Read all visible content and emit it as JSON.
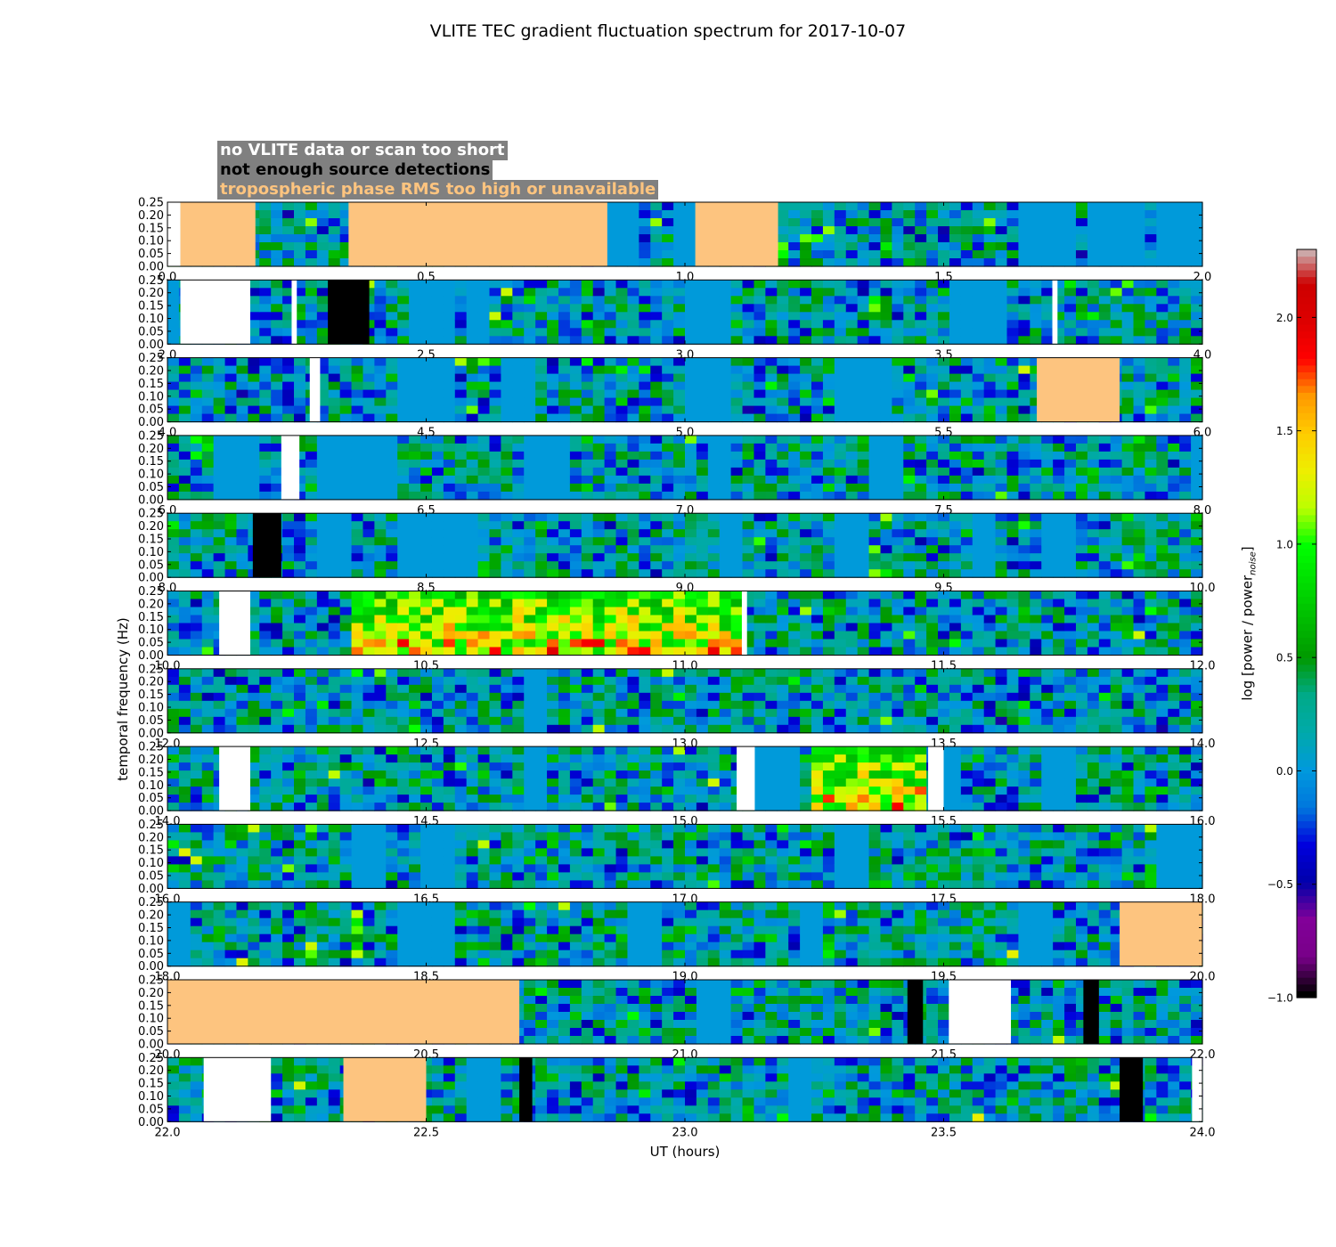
{
  "chart_data": {
    "type": "heatmap",
    "title": "VLITE TEC gradient fluctuation spectrum for 2017-10-07",
    "xlabel": "UT (hours)",
    "ylabel": "temporal frequency (Hz)",
    "ylim": [
      0,
      0.25
    ],
    "yticks": [
      "0.00",
      "0.05",
      "0.10",
      "0.15",
      "0.20",
      "0.25"
    ],
    "legend": {
      "placement": "top-left",
      "entries": [
        {
          "label": "no VLITE data or scan too short",
          "color": "#ffffff"
        },
        {
          "label": "not enough source detections",
          "color": "#000000"
        },
        {
          "label": "tropospheric phase RMS too high or unavailable",
          "color": "#fdc47f"
        }
      ]
    },
    "colorbar": {
      "label": "log [power / power",
      "label_sub": "noise",
      "label_end": "]",
      "range": [
        -1.0,
        2.3
      ],
      "ticks": [
        "2.0",
        "1.5",
        "1.0",
        "0.5",
        "0.0",
        "−0.5",
        "−1.0"
      ],
      "tick_values": [
        2.0,
        1.5,
        1.0,
        0.5,
        0.0,
        -0.5,
        -1.0
      ]
    },
    "panels": [
      {
        "x_range": [
          0.0,
          2.0
        ],
        "xticks": [
          "0.0",
          "0.5",
          "1.0",
          "1.5",
          "2.0"
        ],
        "activity": 0.3,
        "white": [
          [
            0.0,
            0.025
          ]
        ],
        "black": [],
        "orange": [
          [
            0.025,
            0.17
          ],
          [
            0.35,
            0.85
          ],
          [
            1.02,
            1.18
          ]
        ],
        "quiet": [
          [
            0.84,
            0.92
          ],
          [
            0.98,
            1.02
          ],
          [
            1.65,
            1.75
          ],
          [
            1.78,
            1.88
          ],
          [
            1.92,
            2.0
          ]
        ]
      },
      {
        "x_range": [
          2.0,
          4.0
        ],
        "xticks": [
          "2.0",
          "2.5",
          "3.0",
          "3.5",
          "4.0"
        ],
        "activity": 0.3,
        "white": [
          [
            2.025,
            2.16
          ],
          [
            2.24,
            2.25
          ],
          [
            3.71,
            3.72
          ]
        ],
        "black": [
          [
            2.31,
            2.39
          ]
        ],
        "orange": [],
        "quiet": [
          [
            2.0,
            2.025
          ],
          [
            2.47,
            2.55
          ],
          [
            2.57,
            2.63
          ],
          [
            3.0,
            3.1
          ],
          [
            3.52,
            3.62
          ]
        ]
      },
      {
        "x_range": [
          4.0,
          6.0
        ],
        "xticks": [
          "4.0",
          "4.5",
          "5.0",
          "5.5",
          "6.0"
        ],
        "activity": 0.3,
        "white": [
          [
            4.275,
            4.295
          ]
        ],
        "black": [],
        "orange": [
          [
            5.68,
            5.84
          ]
        ],
        "quiet": [
          [
            4.45,
            4.55
          ],
          [
            4.65,
            4.72
          ],
          [
            5.0,
            5.1
          ],
          [
            5.3,
            5.4
          ]
        ]
      },
      {
        "x_range": [
          6.0,
          8.0
        ],
        "xticks": [
          "6.0",
          "6.5",
          "7.0",
          "7.5",
          "8.0"
        ],
        "activity": 0.3,
        "white": [
          [
            6.22,
            6.255
          ]
        ],
        "black": [],
        "orange": [],
        "quiet": [
          [
            6.1,
            6.18
          ],
          [
            6.3,
            6.45
          ],
          [
            6.7,
            6.78
          ],
          [
            7.05,
            7.1
          ],
          [
            7.35,
            7.42
          ],
          [
            7.97,
            8.0
          ]
        ]
      },
      {
        "x_range": [
          8.0,
          10.0
        ],
        "xticks": [
          "8.0",
          "8.5",
          "9.0",
          "9.5",
          "10.0"
        ],
        "activity": 0.3,
        "white": [],
        "black": [
          [
            8.165,
            8.22
          ]
        ],
        "orange": [],
        "quiet": [
          [
            8.3,
            8.35
          ],
          [
            8.45,
            8.6
          ],
          [
            9.07,
            9.12
          ],
          [
            9.3,
            9.35
          ],
          [
            9.55,
            9.6
          ],
          [
            9.7,
            9.75
          ]
        ]
      },
      {
        "x_range": [
          10.0,
          12.0
        ],
        "xticks": [
          "10.0",
          "10.5",
          "11.0",
          "11.5",
          "12.0"
        ],
        "activity": 0.3,
        "white": [
          [
            10.1,
            10.16
          ],
          [
            11.11,
            11.12
          ]
        ],
        "black": [],
        "orange": [],
        "hot": [
          [
            10.35,
            11.11,
            0.85
          ]
        ],
        "quiet": []
      },
      {
        "x_range": [
          12.0,
          14.0
        ],
        "xticks": [
          "12.0",
          "12.5",
          "13.0",
          "13.5",
          "14.0"
        ],
        "activity": 0.25,
        "white": [],
        "black": [],
        "orange": [],
        "quiet": [
          [
            12.7,
            12.73
          ]
        ]
      },
      {
        "x_range": [
          14.0,
          16.0
        ],
        "xticks": [
          "14.0",
          "14.5",
          "15.0",
          "15.5",
          "16.0"
        ],
        "activity": 0.3,
        "white": [
          [
            14.1,
            14.16
          ],
          [
            15.1,
            15.135
          ],
          [
            15.47,
            15.5
          ]
        ],
        "black": [],
        "orange": [],
        "hot": [
          [
            15.235,
            15.47,
            0.85
          ]
        ],
        "quiet": [
          [
            14.7,
            14.73
          ],
          [
            15.135,
            15.23
          ],
          [
            15.5,
            15.53
          ],
          [
            15.7,
            15.75
          ]
        ]
      },
      {
        "x_range": [
          16.0,
          18.0
        ],
        "xticks": [
          "16.0",
          "16.5",
          "17.0",
          "17.5",
          "18.0"
        ],
        "activity": 0.35,
        "white": [],
        "black": [],
        "orange": [],
        "quiet": [
          [
            16.35,
            16.42
          ],
          [
            16.5,
            16.55
          ],
          [
            17.3,
            17.35
          ],
          [
            17.92,
            18.0
          ]
        ]
      },
      {
        "x_range": [
          18.0,
          20.0
        ],
        "xticks": [
          "18.0",
          "18.5",
          "19.0",
          "19.5",
          "20.0"
        ],
        "activity": 0.35,
        "white": [],
        "black": [],
        "orange": [
          [
            19.84,
            20.0
          ]
        ],
        "quiet": [
          [
            18.0,
            18.05
          ],
          [
            18.45,
            18.55
          ],
          [
            18.9,
            18.95
          ],
          [
            19.22,
            19.27
          ],
          [
            19.65,
            19.72
          ]
        ]
      },
      {
        "x_range": [
          20.0,
          22.0
        ],
        "xticks": [
          "20.0",
          "20.5",
          "21.0",
          "21.5",
          "22.0"
        ],
        "activity": 0.3,
        "white": [
          [
            21.51,
            21.63
          ]
        ],
        "black": [
          [
            21.43,
            21.46
          ],
          [
            21.77,
            21.8
          ]
        ],
        "orange": [
          [
            20.0,
            20.68
          ]
        ],
        "quiet": [
          [
            21.03,
            21.1
          ]
        ]
      },
      {
        "x_range": [
          22.0,
          24.0
        ],
        "xticks": [
          "22.0",
          "22.5",
          "23.0",
          "23.5",
          "24.0"
        ],
        "activity": 0.3,
        "white": [
          [
            22.07,
            22.2
          ],
          [
            23.98,
            24.0
          ]
        ],
        "black": [
          [
            22.68,
            22.705
          ],
          [
            23.84,
            23.885
          ]
        ],
        "orange": [
          [
            22.34,
            22.5
          ]
        ],
        "quiet": [
          [
            22.58,
            22.65
          ],
          [
            23.2,
            23.25
          ]
        ]
      }
    ]
  }
}
